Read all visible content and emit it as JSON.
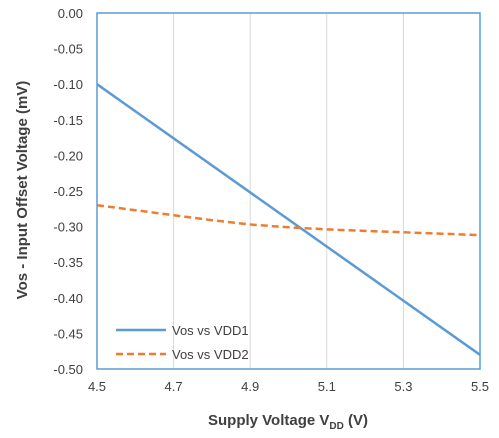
{
  "chart_data": {
    "type": "line",
    "xlabel_main": "Supply Voltage V",
    "xlabel_sub": "DD",
    "xlabel_tail": " (V)",
    "ylabel": "Vos - Input Offset Voltage (mV)",
    "xlim": [
      4.5,
      5.5
    ],
    "ylim": [
      -0.5,
      0.0
    ],
    "x_ticks": [
      "4.5",
      "4.7",
      "4.9",
      "5.1",
      "5.3",
      "5.5"
    ],
    "y_ticks": [
      "0.00",
      "-0.05",
      "-0.10",
      "-0.15",
      "-0.20",
      "-0.25",
      "-0.30",
      "-0.35",
      "-0.40",
      "-0.45",
      "-0.50"
    ],
    "grid": "vertical",
    "legend_position": "bottom-left",
    "series": [
      {
        "name": "Vos vs VDD1",
        "color": "#5b9bd5",
        "style": "solid",
        "x": [
          4.5,
          5.5
        ],
        "y": [
          -0.1,
          -0.48
        ]
      },
      {
        "name": "Vos vs VDD2",
        "color": "#ed7d31",
        "style": "dashed",
        "x": [
          4.5,
          4.6,
          4.7,
          4.8,
          4.9,
          5.0,
          5.1,
          5.2,
          5.3,
          5.4,
          5.5
        ],
        "y": [
          -0.27,
          -0.277,
          -0.284,
          -0.291,
          -0.297,
          -0.301,
          -0.304,
          -0.306,
          -0.308,
          -0.31,
          -0.312
        ]
      }
    ]
  }
}
